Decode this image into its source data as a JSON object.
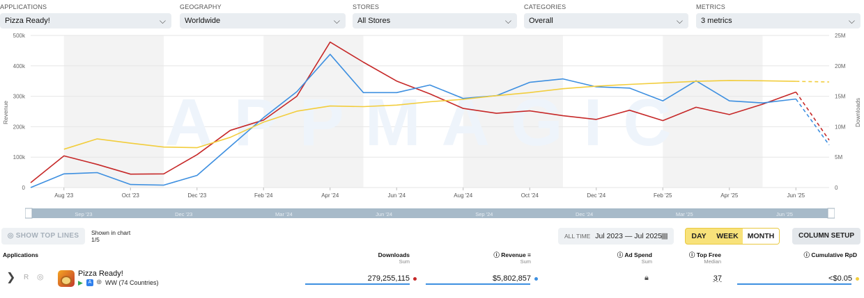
{
  "filters": [
    {
      "label": "APPLICATIONS",
      "value": "Pizza Ready!"
    },
    {
      "label": "GEOGRAPHY",
      "value": "Worldwide"
    },
    {
      "label": "STORES",
      "value": "All Stores"
    },
    {
      "label": "CATEGORIES",
      "value": "Overall"
    },
    {
      "label": "METRICS",
      "value": "3 metrics"
    }
  ],
  "watermark": "APPMAGIC",
  "chart_data": {
    "type": "line",
    "ylabel": "Revenue",
    "y2label": "Downloads",
    "ylim": [
      0,
      500000
    ],
    "y2lim": [
      0,
      25000000
    ],
    "yticks": [
      "0",
      "100k",
      "200k",
      "300k",
      "400k",
      "500k"
    ],
    "y2ticks": [
      "0",
      "5M",
      "10M",
      "15M",
      "20M",
      "25M"
    ],
    "x": [
      "Jul '23",
      "Aug '23",
      "Sep '23",
      "Oct '23",
      "Nov '23",
      "Dec '23",
      "Jan '24",
      "Feb '24",
      "Mar '24",
      "Apr '24",
      "May '24",
      "Jun '24",
      "Jul '24",
      "Aug '24",
      "Sep '24",
      "Oct '24",
      "Nov '24",
      "Dec '24",
      "Jan '25",
      "Feb '25",
      "Mar '25",
      "Apr '25",
      "May '25",
      "Jun '25",
      "Jul '25"
    ],
    "xticks": [
      "Aug '23",
      "Oct '23",
      "Dec '23",
      "Feb '24",
      "Apr '24",
      "Jun '24",
      "Aug '24",
      "Oct '24",
      "Dec '24",
      "Feb '25",
      "Apr '25",
      "Jun '25"
    ],
    "series": [
      {
        "name": "Downloads",
        "color": "#c62828",
        "axis": "right",
        "values": [
          800000,
          5200000,
          3800000,
          2200000,
          2250000,
          5400000,
          9400000,
          11100000,
          15000000,
          23900000,
          20600000,
          17500000,
          15400000,
          13000000,
          12200000,
          12600000,
          11800000,
          11200000,
          12700000,
          11000000,
          13200000,
          12000000,
          13700000,
          15700000,
          7800000
        ]
      },
      {
        "name": "Revenue",
        "color": "#3d8fe0",
        "axis": "left",
        "values": [
          0,
          45000,
          49000,
          10000,
          8000,
          40000,
          135000,
          230000,
          315000,
          438000,
          312000,
          312000,
          337000,
          293000,
          302000,
          346000,
          357000,
          331000,
          327000,
          285000,
          351000,
          285000,
          278000,
          291000,
          140000
        ]
      },
      {
        "name": "Cumulative RpD",
        "color": "#f2cd3c",
        "axis": "left",
        "values": [
          null,
          126000,
          160000,
          146000,
          133000,
          131000,
          165000,
          215000,
          251000,
          268000,
          266000,
          271000,
          282000,
          290000,
          302000,
          312000,
          325000,
          333000,
          339000,
          344000,
          349000,
          352000,
          351000,
          349000,
          347000
        ]
      }
    ],
    "projection_from": "Jun '25",
    "grid": true,
    "legend": "none"
  },
  "scroller": {
    "labels": [
      "Sep '23",
      "Dec '23",
      "Mar '24",
      "Jun '24",
      "Sep '24",
      "Dec '24",
      "Mar '25",
      "Jun '25"
    ]
  },
  "controls": {
    "show_top_lines": "SHOW TOP LINES",
    "shown_label": "Shown in chart",
    "shown_count": "1/5",
    "all_time": "ALL TIME",
    "date_range": "Jul 2023 — Jul 2025",
    "periods": [
      "DAY",
      "WEEK",
      "MONTH"
    ],
    "active_period": "MONTH",
    "column_setup": "COLUMN SETUP"
  },
  "table": {
    "headers": {
      "app": "Applications",
      "downloads": "Downloads",
      "downloads_sub": "Sum",
      "revenue": "Revenue",
      "revenue_sub": "Sum",
      "adspend": "Ad Spend",
      "adspend_sub": "Sum",
      "topfree": "Top Free",
      "topfree_sub": "Median",
      "rpd": "Cumulative RpD"
    },
    "row": {
      "rank": "R",
      "name": "Pizza Ready!",
      "region": "WW (74 Countries)",
      "downloads": "279,255,115",
      "revenue": "$5,802,857",
      "topfree": "37",
      "rpd": "<$0.05"
    }
  }
}
